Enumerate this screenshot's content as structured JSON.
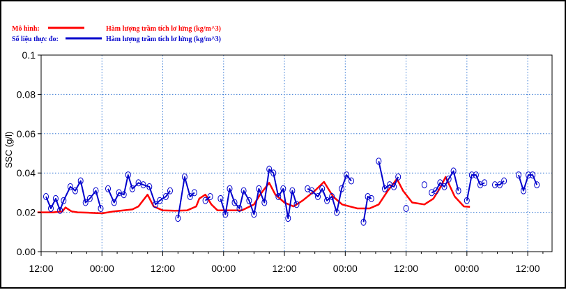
{
  "chart_data": {
    "type": "line",
    "ylabel": "SSC (g/l)",
    "ylim": [
      0,
      0.1
    ],
    "yticks": [
      "0.00",
      "0.02",
      "0.04",
      "0.06",
      "0.08",
      "0.1"
    ],
    "xlim": [
      0,
      8.4
    ],
    "xtick_labels": [
      "12:00",
      "00:00",
      "12:00",
      "00:00",
      "12:00",
      "00:00",
      "12:00",
      "00:00",
      "12:00"
    ],
    "grid": true,
    "legend": {
      "placement": "top-left",
      "items": [
        {
          "prefix": "Mô hình:",
          "name": "Hàm lượng trầm tích lơ lửng (kg/m^3)",
          "color": "#ff0000"
        },
        {
          "prefix": "Số liệu thực đo:",
          "name": "Hàm lượng trầm tích lơ lửng (kg/m^3)",
          "color": "#0000cc"
        }
      ]
    },
    "series": [
      {
        "name": "Hàm lượng trầm tích lơ lửng (kg/m^3)",
        "color": "#ff0000",
        "marker": false,
        "segments": [
          [
            [
              -0.06,
              0.02
            ],
            [
              0.2,
              0.02
            ],
            [
              0.35,
              0.0205
            ],
            [
              0.4,
              0.0225
            ],
            [
              0.5,
              0.0205
            ],
            [
              0.6,
              0.02
            ],
            [
              0.8,
              0.0198
            ],
            [
              1.0,
              0.0195
            ],
            [
              1.2,
              0.0205
            ],
            [
              1.5,
              0.0215
            ],
            [
              1.6,
              0.023
            ],
            [
              1.75,
              0.029
            ],
            [
              1.85,
              0.023
            ],
            [
              2.0,
              0.021
            ],
            [
              2.2,
              0.0208
            ],
            [
              2.4,
              0.021
            ],
            [
              2.55,
              0.023
            ],
            [
              2.6,
              0.027
            ],
            [
              2.7,
              0.029
            ],
            [
              2.8,
              0.024
            ],
            [
              2.9,
              0.021
            ],
            [
              3.3,
              0.021
            ],
            [
              3.5,
              0.024
            ],
            [
              3.6,
              0.029
            ],
            [
              3.75,
              0.035
            ],
            [
              3.85,
              0.029
            ],
            [
              4.0,
              0.025
            ],
            [
              4.15,
              0.023
            ],
            [
              4.3,
              0.026
            ],
            [
              4.5,
              0.031
            ],
            [
              4.65,
              0.0355
            ],
            [
              4.8,
              0.028
            ],
            [
              4.95,
              0.024
            ],
            [
              5.2,
              0.022
            ],
            [
              5.4,
              0.022
            ],
            [
              5.55,
              0.024
            ],
            [
              5.7,
              0.031
            ],
            [
              5.85,
              0.037
            ],
            [
              5.95,
              0.031
            ],
            [
              6.1,
              0.025
            ],
            [
              6.3,
              0.024
            ],
            [
              6.45,
              0.027
            ],
            [
              6.55,
              0.032
            ],
            [
              6.65,
              0.038
            ],
            [
              6.8,
              0.028
            ],
            [
              6.95,
              0.023
            ],
            [
              7.05,
              0.0228
            ]
          ]
        ]
      },
      {
        "name": "Hàm lượng trầm tích lơ lửng (kg/m^3)",
        "color": "#0000cc",
        "marker": true,
        "segments": [
          [
            [
              0.08,
              0.028
            ],
            [
              0.16,
              0.022
            ],
            [
              0.24,
              0.027
            ],
            [
              0.31,
              0.021
            ],
            [
              0.37,
              0.026
            ],
            [
              0.48,
              0.033
            ],
            [
              0.56,
              0.031
            ],
            [
              0.65,
              0.036
            ],
            [
              0.73,
              0.025
            ],
            [
              0.8,
              0.027
            ],
            [
              0.9,
              0.031
            ],
            [
              0.98,
              0.022
            ]
          ],
          [
            [
              1.1,
              0.032
            ],
            [
              1.2,
              0.025
            ],
            [
              1.28,
              0.03
            ],
            [
              1.36,
              0.029
            ],
            [
              1.43,
              0.039
            ],
            [
              1.5,
              0.032
            ],
            [
              1.6,
              0.035
            ],
            [
              1.68,
              0.034
            ],
            [
              1.78,
              0.033
            ],
            [
              1.88,
              0.024
            ],
            [
              1.95,
              0.026
            ],
            [
              2.05,
              0.028
            ],
            [
              2.12,
              0.031
            ]
          ],
          [
            [
              2.25,
              0.017
            ],
            [
              2.36,
              0.038
            ],
            [
              2.45,
              0.028
            ],
            [
              2.52,
              0.03
            ]
          ],
          [
            [
              2.7,
              0.026
            ],
            [
              2.78,
              0.028
            ]
          ],
          [
            [
              2.95,
              0.027
            ],
            [
              3.03,
              0.019
            ],
            [
              3.1,
              0.032
            ],
            [
              3.18,
              0.025
            ],
            [
              3.26,
              0.022
            ],
            [
              3.33,
              0.031
            ],
            [
              3.42,
              0.026
            ],
            [
              3.5,
              0.019
            ],
            [
              3.58,
              0.032
            ],
            [
              3.67,
              0.025
            ],
            [
              3.75,
              0.042
            ],
            [
              3.82,
              0.04
            ],
            [
              3.9,
              0.028
            ],
            [
              3.98,
              0.032
            ],
            [
              4.06,
              0.017
            ],
            [
              4.13,
              0.031
            ],
            [
              4.2,
              0.024
            ]
          ],
          [
            [
              4.38,
              0.032
            ],
            [
              4.45,
              0.031
            ],
            [
              4.55,
              0.028
            ],
            [
              4.62,
              0.032
            ],
            [
              4.7,
              0.026
            ],
            [
              4.78,
              0.028
            ],
            [
              4.86,
              0.02
            ],
            [
              4.94,
              0.032
            ],
            [
              5.02,
              0.039
            ],
            [
              5.1,
              0.036
            ]
          ],
          [
            [
              5.3,
              0.015
            ],
            [
              5.37,
              0.028
            ],
            [
              5.43,
              0.027
            ]
          ],
          [
            [
              5.55,
              0.046
            ],
            [
              5.65,
              0.032
            ],
            [
              5.73,
              0.034
            ],
            [
              5.8,
              0.033
            ],
            [
              5.87,
              0.038
            ]
          ],
          [
            [
              6.0,
              0.022
            ]
          ],
          [
            [
              6.3,
              0.034
            ]
          ],
          [
            [
              6.42,
              0.03
            ],
            [
              6.49,
              0.031
            ],
            [
              6.56,
              0.035
            ],
            [
              6.63,
              0.033
            ],
            [
              6.7,
              0.037
            ],
            [
              6.78,
              0.041
            ],
            [
              6.86,
              0.031
            ]
          ],
          [
            [
              7.0,
              0.026
            ],
            [
              7.08,
              0.039
            ],
            [
              7.15,
              0.039
            ],
            [
              7.22,
              0.034
            ],
            [
              7.29,
              0.035
            ]
          ],
          [
            [
              7.46,
              0.034
            ],
            [
              7.54,
              0.034
            ],
            [
              7.61,
              0.036
            ]
          ],
          [
            [
              7.85,
              0.039
            ],
            [
              7.93,
              0.031
            ],
            [
              8.01,
              0.039
            ],
            [
              8.08,
              0.039
            ],
            [
              8.15,
              0.034
            ]
          ]
        ]
      }
    ]
  }
}
